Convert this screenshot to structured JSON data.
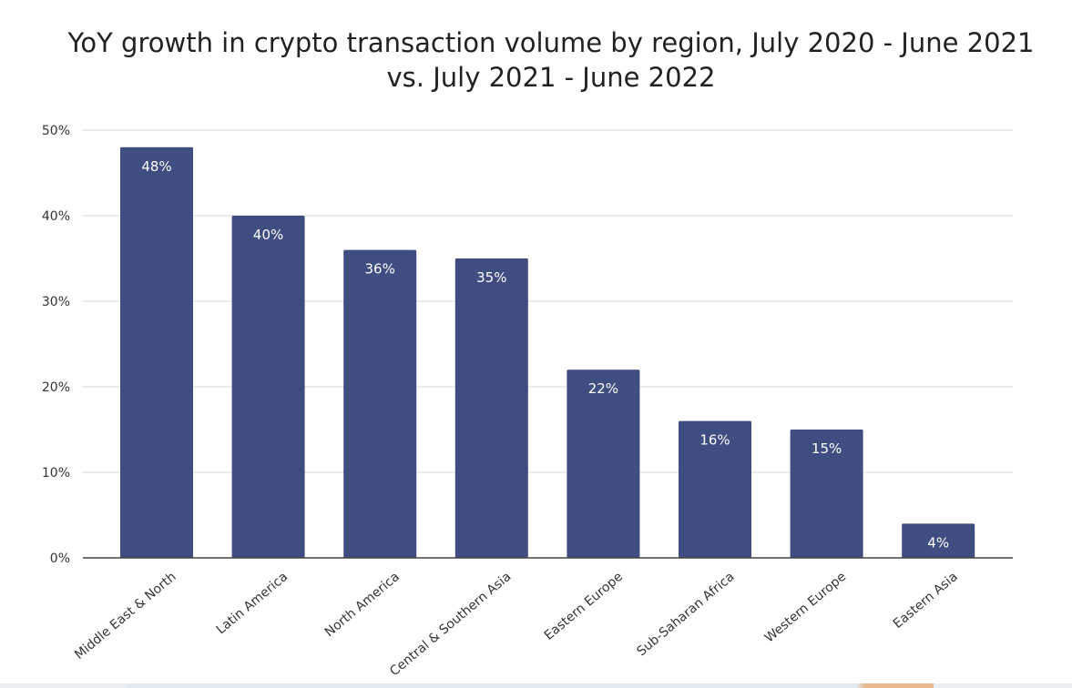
{
  "chart_data": {
    "type": "bar",
    "title": "YoY growth in crypto transaction volume by region, July 2020 - June 2021",
    "subtitle": "vs. July 2021 - June 2022",
    "categories": [
      "Middle East & North",
      "Latin America",
      "North America",
      "Central & Southern Asia",
      "Eastern Europe",
      "Sub-Saharan Africa",
      "Western Europe",
      "Eastern Asia"
    ],
    "values": [
      48,
      40,
      36,
      35,
      22,
      16,
      15,
      4
    ],
    "data_labels": [
      "48%",
      "40%",
      "36%",
      "35%",
      "22%",
      "16%",
      "15%",
      "4%"
    ],
    "y_ticks": [
      "0%",
      "10%",
      "20%",
      "30%",
      "40%",
      "50%"
    ],
    "y_tick_values": [
      0,
      10,
      20,
      30,
      40,
      50
    ],
    "ylim": [
      0,
      50
    ],
    "grid": true,
    "bar_color": "#3f4d80",
    "grid_color": "#d9d9d9",
    "axis_color": "#444444"
  }
}
